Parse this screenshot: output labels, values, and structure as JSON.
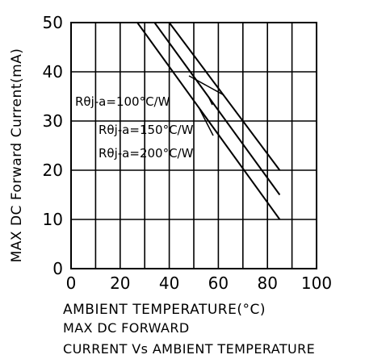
{
  "chart_data": {
    "type": "line",
    "xlabel": "AMBIENT TEMPERATURE(°C)",
    "ylabel": "MAX DC Forward Current(mA)",
    "xlim": [
      0,
      100
    ],
    "ylim": [
      0,
      50
    ],
    "xticks": [
      "0",
      "20",
      "40",
      "60",
      "80",
      "100"
    ],
    "yticks": [
      "0",
      "10",
      "20",
      "30",
      "40",
      "50"
    ],
    "grid": true,
    "series": [
      {
        "name": "Rθj-a=100°C/W",
        "x": [
          40,
          85
        ],
        "y": [
          50,
          20
        ]
      },
      {
        "name": "Rθj-a=150°C/W",
        "x": [
          34,
          85
        ],
        "y": [
          50,
          15
        ]
      },
      {
        "name": "Rθj-a=200°C/W",
        "x": [
          27,
          85
        ],
        "y": [
          50,
          10
        ]
      }
    ],
    "annotations": [
      {
        "series": 0,
        "label": "Rθj-a=100°C/W"
      },
      {
        "series": 1,
        "label": "Rθj-a=150°C/W"
      },
      {
        "series": 2,
        "label": "Rθj-a=200°C/W"
      }
    ]
  },
  "caption": {
    "line1": "MAX  DC  FORWARD",
    "line2": "CURRENT  Vs  AMBIENT  TEMPERATURE"
  }
}
